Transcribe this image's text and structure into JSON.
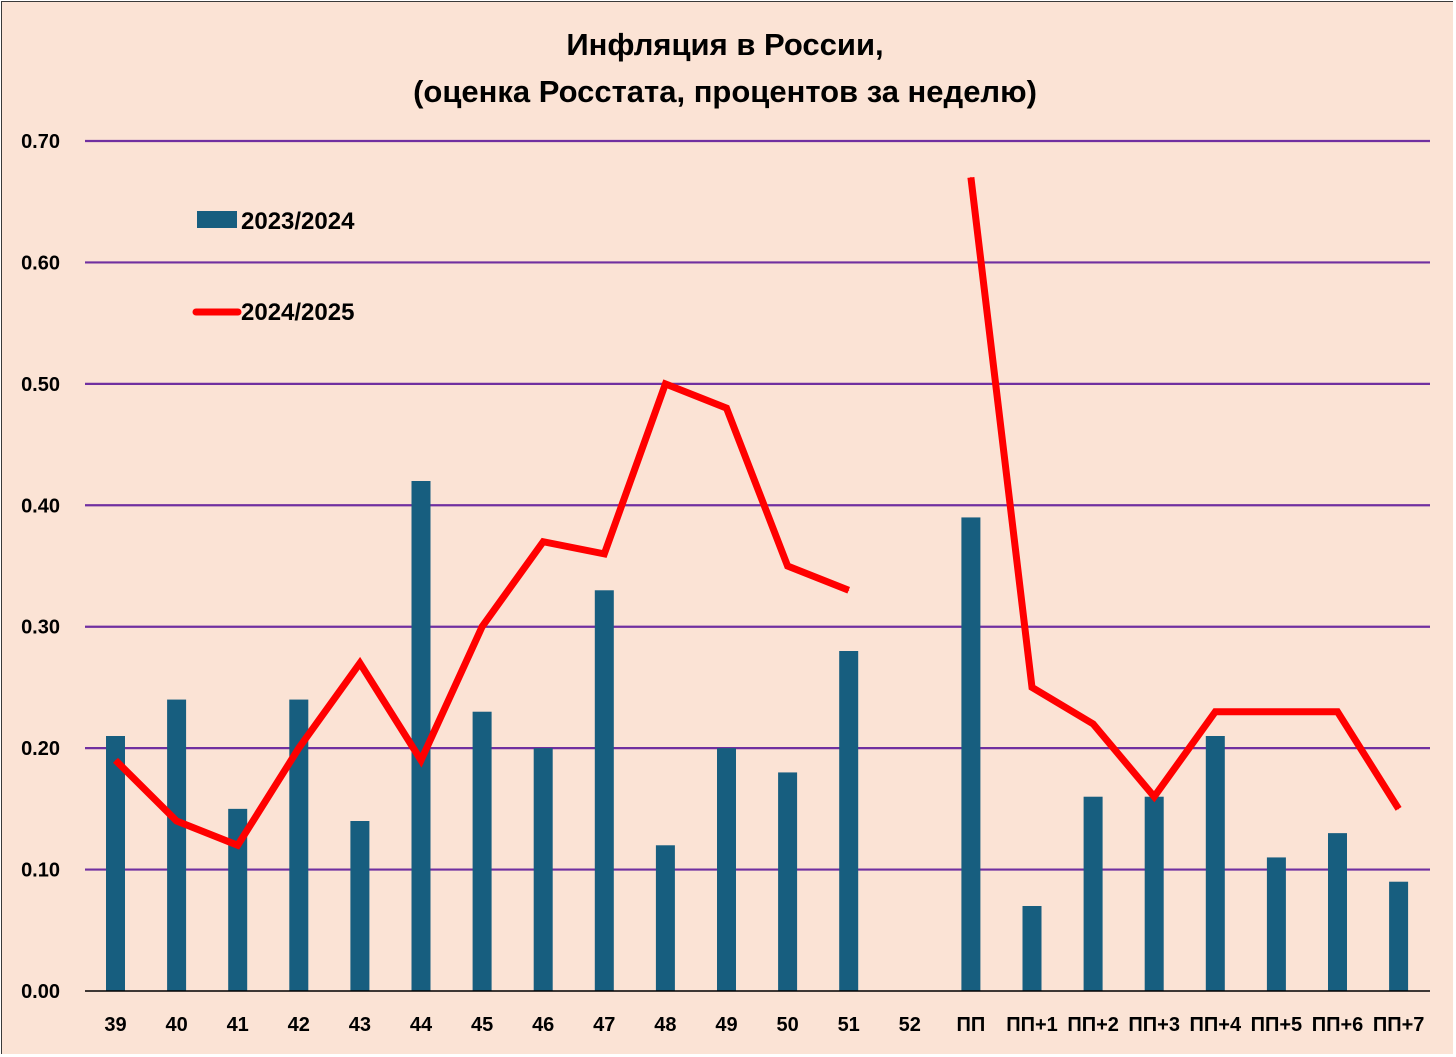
{
  "chart_data": {
    "type": "bar",
    "title": "Инфляция в России,",
    "subtitle": "(оценка Росстата, процентов за неделю)",
    "xlabel": "",
    "ylabel": "",
    "ylim": [
      0,
      0.7
    ],
    "yticks": [
      "0.00",
      "0.10",
      "0.20",
      "0.30",
      "0.40",
      "0.50",
      "0.60",
      "0.70"
    ],
    "grid": true,
    "legend_position": "top-left",
    "categories": [
      "39",
      "40",
      "41",
      "42",
      "43",
      "44",
      "45",
      "46",
      "47",
      "48",
      "49",
      "50",
      "51",
      "52",
      "ПП",
      "ПП+1",
      "ПП+2",
      "ПП+3",
      "ПП+4",
      "ПП+5",
      "ПП+6",
      "ПП+7"
    ],
    "series": [
      {
        "name": "2023/2024",
        "kind": "bar",
        "color": "#175e7f",
        "values": [
          0.21,
          0.24,
          0.15,
          0.24,
          0.14,
          0.42,
          0.23,
          0.2,
          0.33,
          0.12,
          0.2,
          0.18,
          0.28,
          null,
          0.39,
          0.07,
          0.16,
          0.16,
          0.21,
          0.11,
          0.13,
          0.09
        ]
      },
      {
        "name": "2024/2025",
        "kind": "line",
        "color": "#ff0000",
        "values": [
          0.19,
          0.14,
          0.12,
          0.2,
          0.27,
          0.19,
          0.3,
          0.37,
          0.36,
          0.5,
          0.48,
          0.35,
          0.33,
          null,
          0.67,
          0.25,
          0.22,
          0.16,
          0.23,
          0.23,
          0.23,
          0.15
        ]
      }
    ],
    "colors": {
      "background": "#fbe3d5",
      "gridline": "#7030a0",
      "axis": "#000000"
    }
  }
}
